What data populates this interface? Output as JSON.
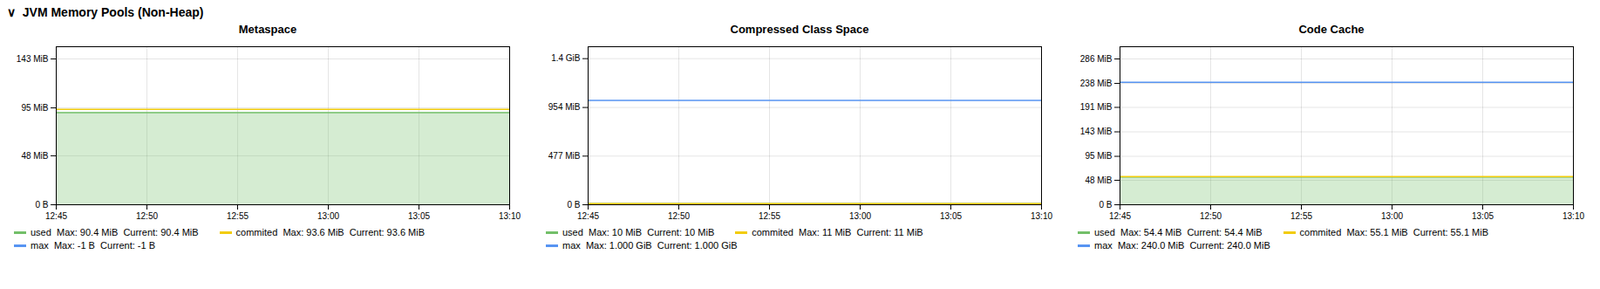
{
  "title": "∨  JVM Memory Pools (Non-Heap)",
  "chart_data": [
    {
      "type": "line",
      "title": "Metaspace",
      "x": [
        "12:45",
        "12:50",
        "12:55",
        "13:00",
        "13:05",
        "13:10"
      ],
      "ylim": [
        0,
        155
      ],
      "yticks": [
        {
          "value": 0,
          "label": "0 B"
        },
        {
          "value": 48,
          "label": "48 MiB"
        },
        {
          "value": 95,
          "label": "95 MiB"
        },
        {
          "value": 143,
          "label": "143 MiB"
        }
      ],
      "grid": true,
      "series": [
        {
          "name": "used  Max: 90.4 MiB  Current: 90.4 MiB",
          "color": "#73bf69",
          "type": "area",
          "values": [
            90.4,
            90.4,
            90.4,
            90.4,
            90.4,
            90.4
          ]
        },
        {
          "name": "commited  Max: 93.6 MiB  Current: 93.6 MiB",
          "color": "#f2cc0c",
          "type": "line",
          "values": [
            93.6,
            93.6,
            93.6,
            93.6,
            93.6,
            93.6
          ]
        },
        {
          "name": "max  Max: -1 B  Current: -1 B",
          "color": "#5794f2",
          "type": "line",
          "values": [
            null,
            null,
            null,
            null,
            null,
            null
          ]
        }
      ]
    },
    {
      "type": "line",
      "title": "Compressed Class Space",
      "x": [
        "12:45",
        "12:50",
        "12:55",
        "13:00",
        "13:05",
        "13:10"
      ],
      "ylim": [
        0,
        1550
      ],
      "yticks": [
        {
          "value": 0,
          "label": "0 B"
        },
        {
          "value": 477,
          "label": "477 MiB"
        },
        {
          "value": 954,
          "label": "954 MiB"
        },
        {
          "value": 1433,
          "label": "1.4 GiB"
        }
      ],
      "grid": true,
      "series": [
        {
          "name": "used  Max: 10 MiB  Current: 10 MiB",
          "color": "#73bf69",
          "type": "area",
          "values": [
            10,
            10,
            10,
            10,
            10,
            10
          ]
        },
        {
          "name": "commited  Max: 11 MiB  Current: 11 MiB",
          "color": "#f2cc0c",
          "type": "line",
          "values": [
            11,
            11,
            11,
            11,
            11,
            11
          ]
        },
        {
          "name": "max  Max: 1.000 GiB  Current: 1.000 GiB",
          "color": "#5794f2",
          "type": "line",
          "values": [
            1024,
            1024,
            1024,
            1024,
            1024,
            1024
          ]
        }
      ]
    },
    {
      "type": "line",
      "title": "Code Cache",
      "x": [
        "12:45",
        "12:50",
        "12:55",
        "13:00",
        "13:05",
        "13:10"
      ],
      "ylim": [
        0,
        310
      ],
      "yticks": [
        {
          "value": 0,
          "label": "0 B"
        },
        {
          "value": 48,
          "label": "48 MiB"
        },
        {
          "value": 95,
          "label": "95 MiB"
        },
        {
          "value": 143,
          "label": "143 MiB"
        },
        {
          "value": 191,
          "label": "191 MiB"
        },
        {
          "value": 238,
          "label": "238 MiB"
        },
        {
          "value": 286,
          "label": "286 MiB"
        }
      ],
      "grid": true,
      "series": [
        {
          "name": "used  Max: 54.4 MiB  Current: 54.4 MiB",
          "color": "#73bf69",
          "type": "area",
          "values": [
            54.4,
            54.4,
            54.4,
            54.4,
            54.4,
            54.4
          ]
        },
        {
          "name": "commited  Max: 55.1 MiB  Current: 55.1 MiB",
          "color": "#f2cc0c",
          "type": "line",
          "values": [
            55.1,
            55.1,
            55.1,
            55.1,
            55.1,
            55.1
          ]
        },
        {
          "name": "max  Max: 240.0 MiB  Current: 240.0 MiB",
          "color": "#5794f2",
          "type": "line",
          "values": [
            240,
            240,
            240,
            240,
            240,
            240
          ]
        }
      ]
    }
  ]
}
